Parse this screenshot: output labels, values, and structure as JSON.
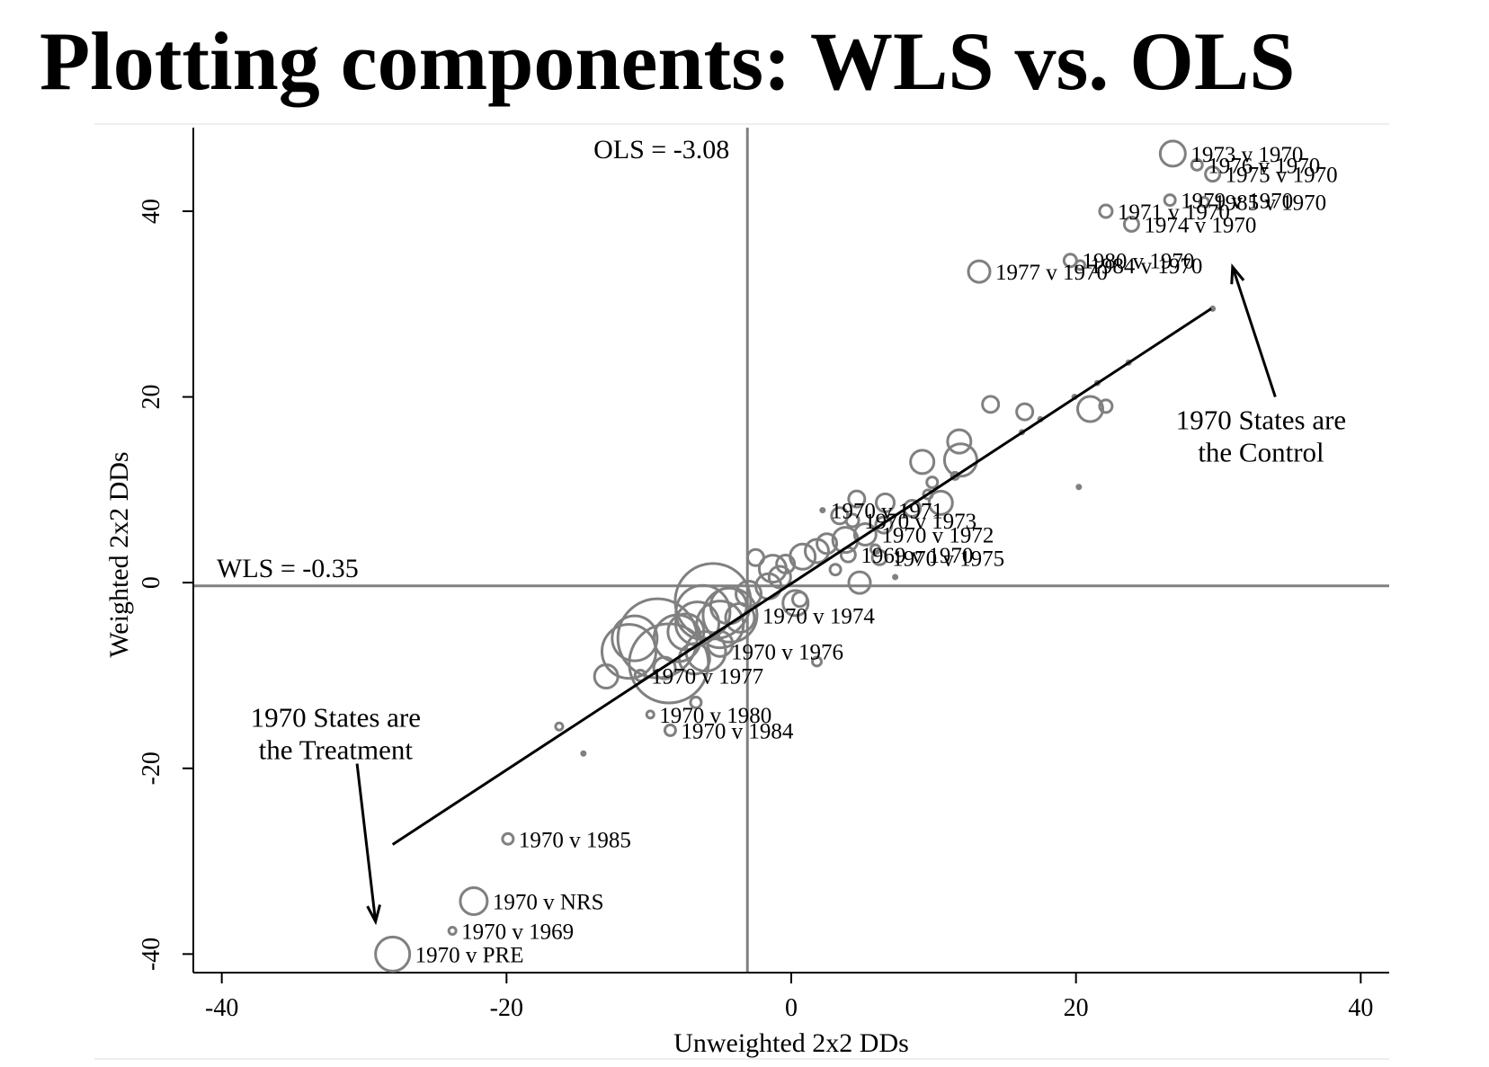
{
  "page": {
    "title": "Plotting components: WLS vs. OLS"
  },
  "chart_data": {
    "type": "scatter",
    "xlabel": "Unweighted 2x2 DDs",
    "ylabel": "Weighted 2x2 DDs",
    "xlim": [
      -42,
      42
    ],
    "ylim": [
      -42,
      49
    ],
    "xticks": [
      -40,
      -20,
      0,
      20,
      40
    ],
    "yticks": [
      -40,
      -20,
      0,
      20,
      40
    ],
    "xtick_labels": [
      "-40",
      "-20",
      "0",
      "20",
      "40"
    ],
    "ytick_labels": [
      "-40",
      "-20",
      "0",
      "20",
      "40"
    ],
    "grid": false,
    "marker_color": "#808080",
    "line_color": "#000000",
    "refline_color": "#808080",
    "reference_lines": {
      "vertical": {
        "x": -3.08,
        "label": "OLS = -3.08"
      },
      "horizontal": {
        "y": -0.35,
        "label": "WLS = -0.35"
      }
    },
    "fit_line": {
      "x": [
        -28,
        29.5
      ],
      "y": [
        -28.2,
        29.5
      ]
    },
    "annotations": [
      {
        "lines": [
          "1970 States are",
          "the Treatment"
        ],
        "text_x": -32,
        "text_y": -15.5,
        "arrow_from": [
          -30.5,
          -19.5
        ],
        "arrow_to": [
          -29.2,
          -36.5
        ]
      },
      {
        "lines": [
          "1970 States are",
          "the Control"
        ],
        "text_x": 33,
        "text_y": 16.5,
        "arrow_from": [
          34,
          20
        ],
        "arrow_to": [
          31,
          34
        ]
      }
    ],
    "points": [
      {
        "x": 26.8,
        "y": 46.2,
        "s": 14,
        "label": "1973 v 1970"
      },
      {
        "x": 28.5,
        "y": 45.0,
        "s": 6,
        "label": "1976 v 1970"
      },
      {
        "x": 29.6,
        "y": 44.0,
        "s": 8,
        "label": "1975 v 1970"
      },
      {
        "x": 26.6,
        "y": 41.2,
        "s": 6,
        "label": "1979 v 1970"
      },
      {
        "x": 29.0,
        "y": 41.0,
        "s": 5,
        "label": "1985 v 1970"
      },
      {
        "x": 22.1,
        "y": 40.0,
        "s": 7,
        "label": "1971 v 1970"
      },
      {
        "x": 23.9,
        "y": 38.6,
        "s": 8,
        "label": "1974 v 1970"
      },
      {
        "x": 19.6,
        "y": 34.7,
        "s": 7,
        "label": "1980 v 1970"
      },
      {
        "x": 20.3,
        "y": 34.2,
        "s": 5,
        "label": "1984 v 1970"
      },
      {
        "x": 13.2,
        "y": 33.5,
        "s": 12,
        "label": "1977 v 1970"
      },
      {
        "x": 29.6,
        "y": 29.5,
        "s": 3,
        "label": ""
      },
      {
        "x": 23.7,
        "y": 23.7,
        "s": 3,
        "label": ""
      },
      {
        "x": 21.5,
        "y": 21.5,
        "s": 3,
        "label": ""
      },
      {
        "x": 19.9,
        "y": 20.0,
        "s": 3,
        "label": ""
      },
      {
        "x": 17.5,
        "y": 17.6,
        "s": 3,
        "label": ""
      },
      {
        "x": 16.2,
        "y": 16.2,
        "s": 3,
        "label": ""
      },
      {
        "x": 14.0,
        "y": 19.2,
        "s": 9,
        "label": ""
      },
      {
        "x": 16.4,
        "y": 18.4,
        "s": 9,
        "label": ""
      },
      {
        "x": 21.0,
        "y": 18.7,
        "s": 14,
        "label": ""
      },
      {
        "x": 22.1,
        "y": 19.0,
        "s": 7,
        "label": ""
      },
      {
        "x": 20.2,
        "y": 10.3,
        "s": 3,
        "label": ""
      },
      {
        "x": 11.8,
        "y": 15.2,
        "s": 13,
        "label": ""
      },
      {
        "x": 11.9,
        "y": 13.2,
        "s": 18,
        "label": ""
      },
      {
        "x": 9.2,
        "y": 13.0,
        "s": 13,
        "label": ""
      },
      {
        "x": 11.5,
        "y": 11.5,
        "s": 4,
        "label": ""
      },
      {
        "x": 9.9,
        "y": 10.8,
        "s": 6,
        "label": ""
      },
      {
        "x": 9.6,
        "y": 9.5,
        "s": 5,
        "label": ""
      },
      {
        "x": 10.5,
        "y": 8.6,
        "s": 13,
        "label": ""
      },
      {
        "x": 8.5,
        "y": 8.0,
        "s": 9,
        "label": ""
      },
      {
        "x": 4.6,
        "y": 9.0,
        "s": 9,
        "label": ""
      },
      {
        "x": 6.6,
        "y": 8.6,
        "s": 10,
        "label": ""
      },
      {
        "x": 2.2,
        "y": 7.8,
        "s": 3,
        "label": "1970 v 1971"
      },
      {
        "x": 3.4,
        "y": 7.2,
        "s": 9,
        "label": ""
      },
      {
        "x": 4.3,
        "y": 6.7,
        "s": 7,
        "label": "1970 v 1973"
      },
      {
        "x": 6.5,
        "y": 6.2,
        "s": 9,
        "label": ""
      },
      {
        "x": 5.2,
        "y": 5.2,
        "s": 12,
        "label": "1970 v 1972"
      },
      {
        "x": 3.8,
        "y": 4.6,
        "s": 14,
        "label": ""
      },
      {
        "x": 2.5,
        "y": 4.2,
        "s": 11,
        "label": ""
      },
      {
        "x": 1.8,
        "y": 3.4,
        "s": 13,
        "label": ""
      },
      {
        "x": 4.0,
        "y": 3.0,
        "s": 8,
        "label": "1969 v 1970"
      },
      {
        "x": 6.2,
        "y": 2.7,
        "s": 8,
        "label": "1970 v 1975"
      },
      {
        "x": 0.8,
        "y": 2.8,
        "s": 14,
        "label": ""
      },
      {
        "x": -0.4,
        "y": 2.0,
        "s": 10,
        "label": ""
      },
      {
        "x": -1.3,
        "y": 1.5,
        "s": 15,
        "label": ""
      },
      {
        "x": -2.5,
        "y": 2.7,
        "s": 9,
        "label": ""
      },
      {
        "x": 5.9,
        "y": 3.6,
        "s": 5,
        "label": ""
      },
      {
        "x": 7.3,
        "y": 0.6,
        "s": 3,
        "label": ""
      },
      {
        "x": 4.8,
        "y": 0.0,
        "s": 12,
        "label": ""
      },
      {
        "x": 3.1,
        "y": 1.4,
        "s": 6,
        "label": ""
      },
      {
        "x": 0.3,
        "y": -2.2,
        "s": 14,
        "label": ""
      },
      {
        "x": 0.6,
        "y": -1.8,
        "s": 8,
        "label": ""
      },
      {
        "x": -0.8,
        "y": 0.6,
        "s": 12,
        "label": ""
      },
      {
        "x": -1.6,
        "y": -0.4,
        "s": 14,
        "label": ""
      },
      {
        "x": -3.0,
        "y": -1.2,
        "s": 14,
        "label": ""
      },
      {
        "x": -5.5,
        "y": -2.0,
        "s": 42,
        "label": ""
      },
      {
        "x": -6.2,
        "y": -3.2,
        "s": 30,
        "label": ""
      },
      {
        "x": -4.3,
        "y": -3.5,
        "s": 30,
        "label": "1970 v 1974"
      },
      {
        "x": -5.0,
        "y": -4.5,
        "s": 26,
        "label": ""
      },
      {
        "x": -6.6,
        "y": -4.4,
        "s": 24,
        "label": ""
      },
      {
        "x": -7.4,
        "y": -5.3,
        "s": 20,
        "label": ""
      },
      {
        "x": -8.0,
        "y": -6.0,
        "s": 26,
        "label": ""
      },
      {
        "x": -9.4,
        "y": -6.0,
        "s": 44,
        "label": ""
      },
      {
        "x": -11.0,
        "y": -6.0,
        "s": 25,
        "label": ""
      },
      {
        "x": -11.4,
        "y": -7.4,
        "s": 30,
        "label": ""
      },
      {
        "x": -8.6,
        "y": -8.7,
        "s": 44,
        "label": ""
      },
      {
        "x": -6.8,
        "y": -8.2,
        "s": 17,
        "label": ""
      },
      {
        "x": -6.0,
        "y": -7.4,
        "s": 22,
        "label": "1970 v 1976"
      },
      {
        "x": -5.0,
        "y": -6.6,
        "s": 14,
        "label": ""
      },
      {
        "x": -3.6,
        "y": -3.8,
        "s": 16,
        "label": ""
      },
      {
        "x": -4.4,
        "y": -2.5,
        "s": 20,
        "label": ""
      },
      {
        "x": 1.8,
        "y": -8.5,
        "s": 5,
        "label": ""
      },
      {
        "x": -8.9,
        "y": -9.2,
        "s": 12,
        "label": ""
      },
      {
        "x": -10.6,
        "y": -10.0,
        "s": 6,
        "label": "1970 v 1977"
      },
      {
        "x": -13.0,
        "y": -10.1,
        "s": 13,
        "label": ""
      },
      {
        "x": -6.7,
        "y": -12.9,
        "s": 6,
        "label": ""
      },
      {
        "x": -9.9,
        "y": -14.2,
        "s": 4,
        "label": "1970 v 1980"
      },
      {
        "x": -8.5,
        "y": -15.9,
        "s": 6,
        "label": "1970 v 1984"
      },
      {
        "x": -16.3,
        "y": -15.5,
        "s": 4,
        "label": ""
      },
      {
        "x": -14.6,
        "y": -18.4,
        "s": 3,
        "label": ""
      },
      {
        "x": -19.9,
        "y": -27.6,
        "s": 6,
        "label": "1970 v 1985"
      },
      {
        "x": -22.3,
        "y": -34.3,
        "s": 15,
        "label": "1970 v NRS"
      },
      {
        "x": -23.8,
        "y": -37.5,
        "s": 4,
        "label": "1970 v 1969"
      },
      {
        "x": -28.0,
        "y": -40.0,
        "s": 19,
        "label": "1970 v PRE"
      }
    ]
  }
}
